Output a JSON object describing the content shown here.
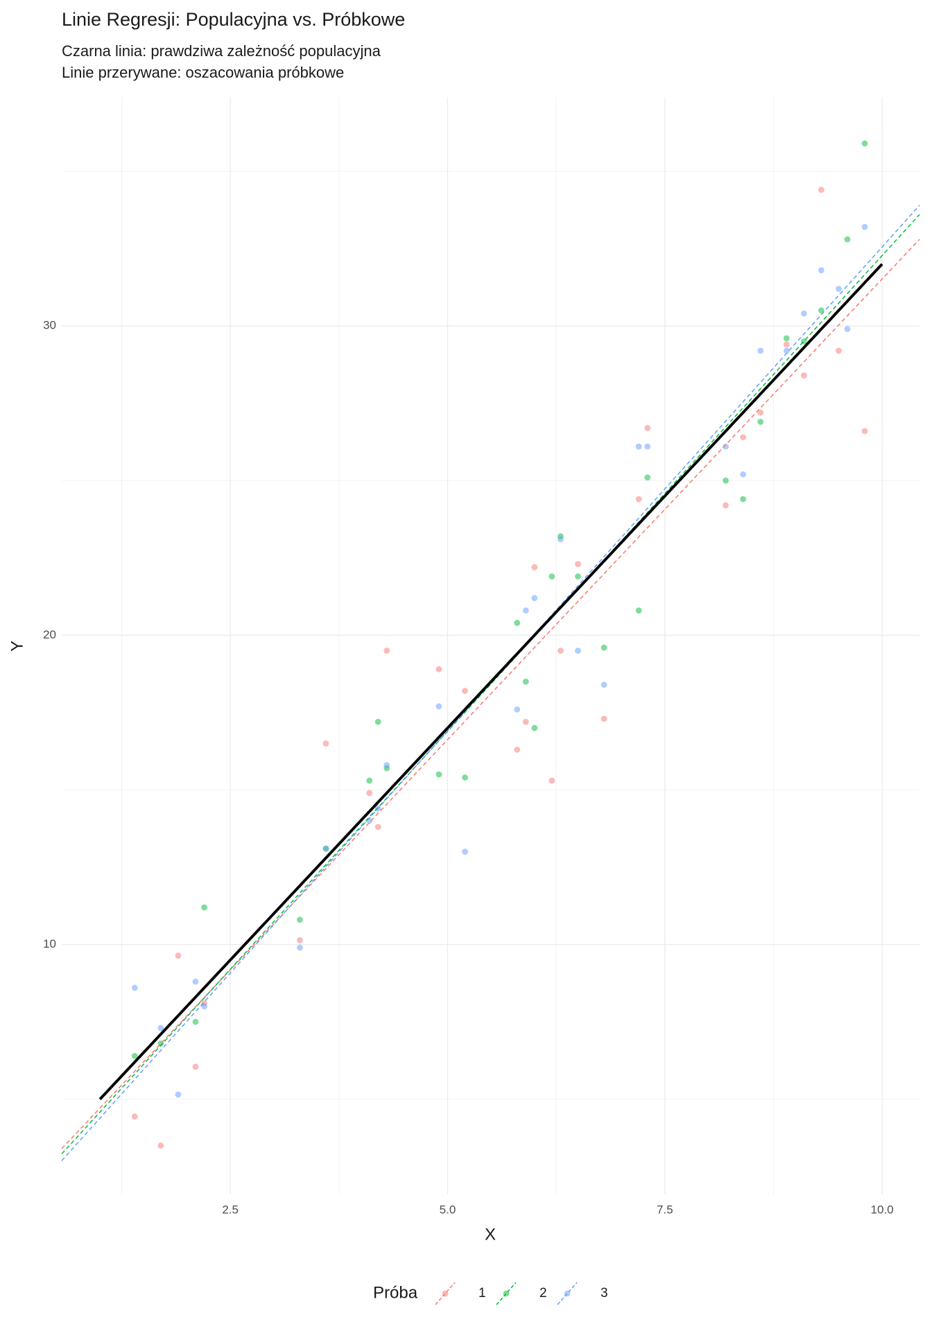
{
  "chart_data": {
    "type": "scatter",
    "title": "Linie Regresji: Populacyjna vs. Próbkowe",
    "subtitle": [
      "Czarna linia: prawdziwa zależność populacyjna",
      "Linie przerywane: oszacowania próbkowe"
    ],
    "xlabel": "X",
    "ylabel": "Y",
    "xlim": [
      0.56,
      10.43
    ],
    "ylim": [
      1.92,
      37.4
    ],
    "xticks": [
      {
        "value": 2.5,
        "label": "2.5"
      },
      {
        "value": 5,
        "label": "5.0"
      },
      {
        "value": 7.5,
        "label": "7.5"
      },
      {
        "value": 10,
        "label": "10.0"
      }
    ],
    "yticks": [
      10,
      20,
      30
    ],
    "grid": true,
    "legend_title": "Próba",
    "legend_position": "bottom",
    "population_line": {
      "color": "#000000",
      "x": [
        1,
        10
      ],
      "y": [
        5,
        32
      ]
    },
    "series": [
      {
        "name": "1",
        "color": "#F8766D",
        "x": [
          1.4,
          1.7,
          1.9,
          2.2,
          2.1,
          3.3,
          3.6,
          4.1,
          4.2,
          4.3,
          4.9,
          5.2,
          5.8,
          5.9,
          6.0,
          6.2,
          6.3,
          6.5,
          6.8,
          7.2,
          7.3,
          8.2,
          8.4,
          8.6,
          8.9,
          9.1,
          9.3,
          9.5,
          9.8
        ],
        "y": [
          4.44,
          3.5,
          9.64,
          8.1,
          6.05,
          10.14,
          16.5,
          14.9,
          13.8,
          19.5,
          18.9,
          18.2,
          16.3,
          17.2,
          22.2,
          15.3,
          19.5,
          22.3,
          17.3,
          24.4,
          26.7,
          24.2,
          26.4,
          27.2,
          29.4,
          28.4,
          34.4,
          29.2,
          26.6
        ],
        "fit": {
          "x": [
            0.56,
            10.43
          ],
          "y": [
            3.4,
            32.8
          ]
        }
      },
      {
        "name": "2",
        "color": "#00BA38",
        "x": [
          1.4,
          1.7,
          2.1,
          2.2,
          3.3,
          3.6,
          4.1,
          4.2,
          4.3,
          4.9,
          5.2,
          5.8,
          5.9,
          6.0,
          6.2,
          6.3,
          6.5,
          6.8,
          7.2,
          7.3,
          8.2,
          8.4,
          8.6,
          8.9,
          9.1,
          9.3,
          9.6,
          9.8
        ],
        "y": [
          6.4,
          6.8,
          7.5,
          11.2,
          10.8,
          13.1,
          15.3,
          17.2,
          15.7,
          15.5,
          15.4,
          20.4,
          18.5,
          17.0,
          21.9,
          23.2,
          21.9,
          19.6,
          20.8,
          25.1,
          25.0,
          24.4,
          26.9,
          29.6,
          29.5,
          30.5,
          32.8,
          35.9
        ],
        "fit": {
          "x": [
            0.56,
            10.43
          ],
          "y": [
            3.23,
            33.6
          ]
        }
      },
      {
        "name": "3",
        "color": "#619CFF",
        "x": [
          1.4,
          1.7,
          1.9,
          2.1,
          2.2,
          3.3,
          3.6,
          4.1,
          4.2,
          4.3,
          4.9,
          5.2,
          5.8,
          5.9,
          6.0,
          6.3,
          6.5,
          6.8,
          7.2,
          7.3,
          8.2,
          8.4,
          8.6,
          8.9,
          9.1,
          9.3,
          9.5,
          9.6,
          9.8
        ],
        "y": [
          8.6,
          7.3,
          5.15,
          8.8,
          8.0,
          9.9,
          13.1,
          14.0,
          14.4,
          15.8,
          17.7,
          13.0,
          17.6,
          20.8,
          21.2,
          23.1,
          19.5,
          18.4,
          26.1,
          26.1,
          26.1,
          25.2,
          29.2,
          29.2,
          30.4,
          31.8,
          31.2,
          29.9,
          33.2
        ],
        "fit": {
          "x": [
            0.56,
            10.43
          ],
          "y": [
            3.01,
            33.9
          ]
        }
      }
    ]
  }
}
